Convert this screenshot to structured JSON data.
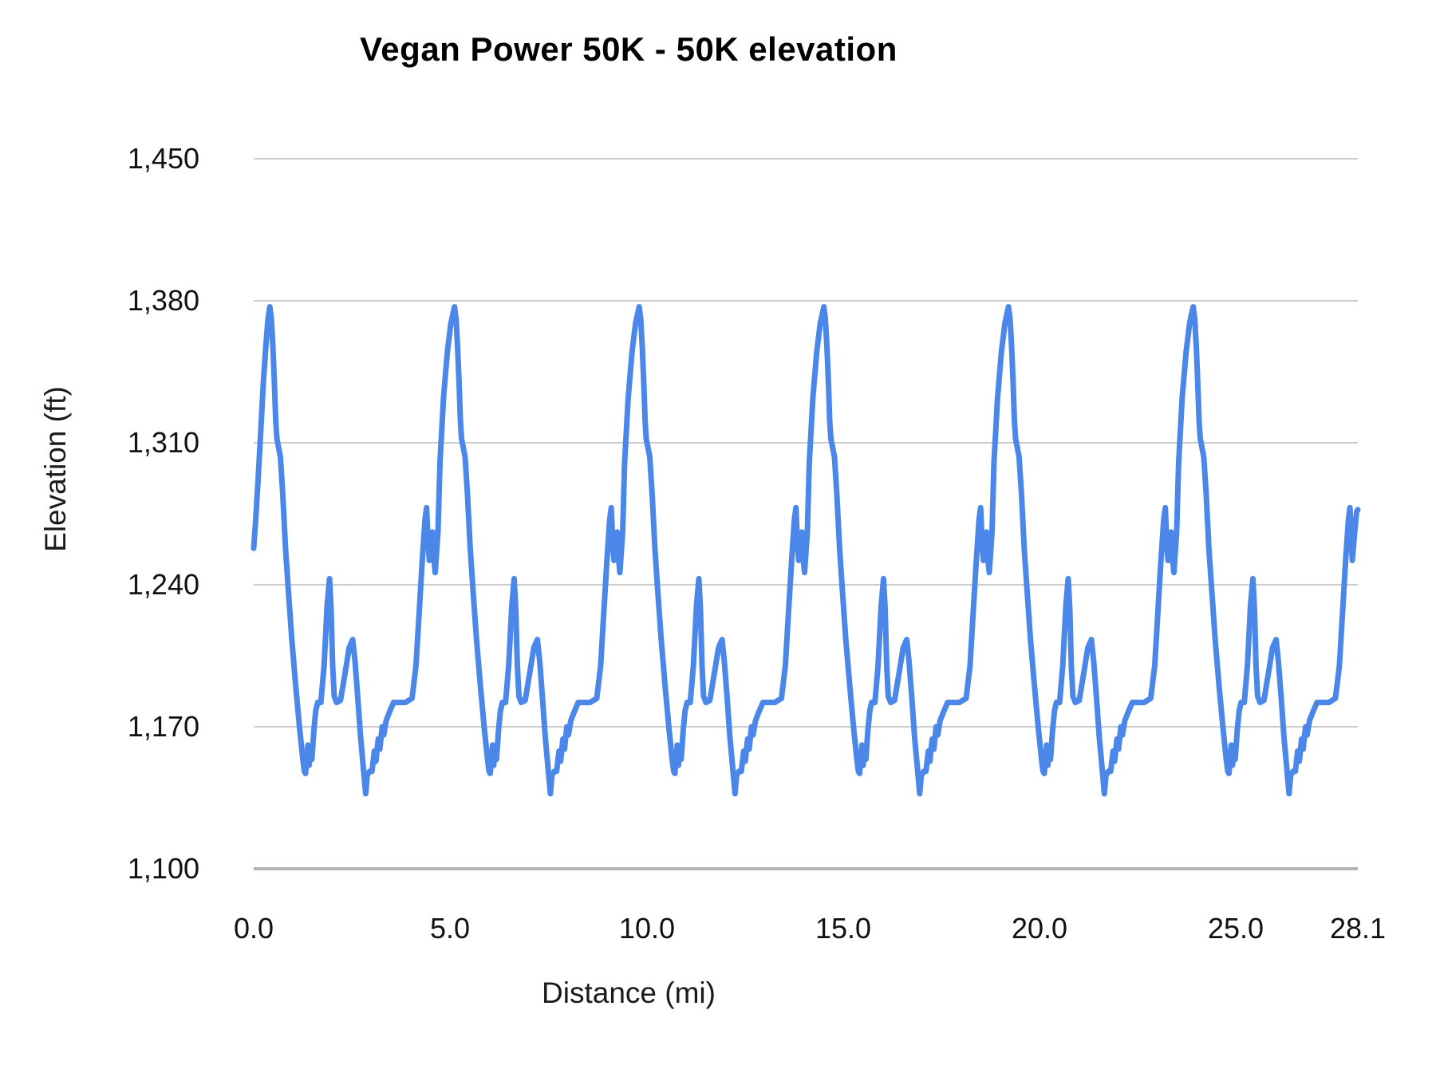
{
  "chart_data": {
    "type": "line",
    "title": "Vegan Power 50K - 50K elevation",
    "xlabel": "Distance (mi)",
    "ylabel": "Elevation (ft)",
    "xlim": [
      0,
      28.1
    ],
    "ylim": [
      1100,
      1450
    ],
    "x_ticks": [
      0,
      5,
      10,
      15,
      20,
      25,
      28.1
    ],
    "x_tick_labels": [
      "0.0",
      "5.0",
      "10.0",
      "15.0",
      "20.0",
      "25.0",
      "28.1"
    ],
    "y_ticks": [
      1450,
      1380,
      1310,
      1240,
      1170,
      1100
    ],
    "y_tick_labels": [
      "1,450",
      "1,380",
      "1,310",
      "1,240",
      "1,170",
      "1,100"
    ],
    "grid": "horizontal gridlines only, light gray; darker baseline at y=1100",
    "legend": "none",
    "line_color": "#4a87e8",
    "gridline_color": "#cccccc",
    "baseline_color": "#b3b3b3",
    "series_name": "50K elevation",
    "units": {
      "x": "mi",
      "y": "ft"
    },
    "course_summary": {
      "description": "Looped course: the same elevation pattern repeats 6 times",
      "num_loops": 6,
      "loop_length_mi": 4.7,
      "start_elevation_ft": 1258,
      "end_elevation_ft": 1277,
      "min_elevation_ft": 1137,
      "max_elevation_ft": 1377,
      "major_peak_elevation_ft": 1377,
      "major_peak_miles": [
        0.41,
        5.11,
        9.81,
        14.51,
        19.21,
        23.91
      ]
    },
    "series_construction": {
      "note": "Full series = lead_in points, then for each peak mile P append loop_pattern points (t>0) at x=P+t; for the final loop only t<=last_loop_cutoff_t, then append tail points. Pairs are [miles, feet].",
      "lead_in": [
        [
          0.0,
          1258
        ],
        [
          0.05,
          1272
        ],
        [
          0.11,
          1291
        ],
        [
          0.18,
          1316
        ],
        [
          0.25,
          1341
        ],
        [
          0.31,
          1358
        ],
        [
          0.36,
          1370
        ],
        [
          0.41,
          1377
        ]
      ],
      "peak_miles": [
        0.41,
        5.11,
        9.81,
        14.51,
        19.21,
        23.91
      ],
      "last_loop_cutoff_t": 3.995,
      "loop_pattern": [
        [
          0.0,
          1377
        ],
        [
          0.04,
          1371
        ],
        [
          0.08,
          1357
        ],
        [
          0.12,
          1338
        ],
        [
          0.15,
          1321
        ],
        [
          0.18,
          1312
        ],
        [
          0.22,
          1308
        ],
        [
          0.27,
          1303
        ],
        [
          0.33,
          1285
        ],
        [
          0.4,
          1258
        ],
        [
          0.47,
          1238
        ],
        [
          0.56,
          1213
        ],
        [
          0.66,
          1190
        ],
        [
          0.76,
          1169
        ],
        [
          0.84,
          1154
        ],
        [
          0.88,
          1148
        ],
        [
          0.91,
          1147
        ],
        [
          0.97,
          1161
        ],
        [
          1.0,
          1151
        ],
        [
          1.04,
          1159
        ],
        [
          1.07,
          1154
        ],
        [
          1.12,
          1168
        ],
        [
          1.17,
          1178
        ],
        [
          1.22,
          1182
        ],
        [
          1.3,
          1182
        ],
        [
          1.38,
          1200
        ],
        [
          1.46,
          1230
        ],
        [
          1.52,
          1243
        ],
        [
          1.56,
          1228
        ],
        [
          1.6,
          1200
        ],
        [
          1.64,
          1185
        ],
        [
          1.7,
          1182
        ],
        [
          1.8,
          1183
        ],
        [
          1.92,
          1197
        ],
        [
          2.02,
          1209
        ],
        [
          2.11,
          1213
        ],
        [
          2.17,
          1202
        ],
        [
          2.24,
          1184
        ],
        [
          2.31,
          1165
        ],
        [
          2.38,
          1150
        ],
        [
          2.44,
          1137
        ],
        [
          2.48,
          1146
        ],
        [
          2.54,
          1148
        ],
        [
          2.6,
          1148
        ],
        [
          2.66,
          1158
        ],
        [
          2.7,
          1153
        ],
        [
          2.76,
          1164
        ],
        [
          2.8,
          1159
        ],
        [
          2.86,
          1170
        ],
        [
          2.9,
          1166
        ],
        [
          2.96,
          1173
        ],
        [
          3.04,
          1177
        ],
        [
          3.15,
          1182
        ],
        [
          3.45,
          1182
        ],
        [
          3.62,
          1184
        ],
        [
          3.72,
          1200
        ],
        [
          3.8,
          1226
        ],
        [
          3.88,
          1252
        ],
        [
          3.95,
          1272
        ],
        [
          3.99,
          1278
        ],
        [
          4.03,
          1260
        ],
        [
          4.06,
          1252
        ],
        [
          4.1,
          1262
        ],
        [
          4.14,
          1266
        ],
        [
          4.17,
          1254
        ],
        [
          4.21,
          1246
        ],
        [
          4.28,
          1266
        ],
        [
          4.33,
          1300
        ],
        [
          4.42,
          1332
        ],
        [
          4.52,
          1355
        ],
        [
          4.61,
          1369
        ],
        [
          4.7,
          1377
        ]
      ],
      "tail": [
        [
          27.96,
          1252
        ],
        [
          28.02,
          1266
        ],
        [
          28.07,
          1276
        ],
        [
          28.1,
          1277
        ]
      ]
    }
  }
}
